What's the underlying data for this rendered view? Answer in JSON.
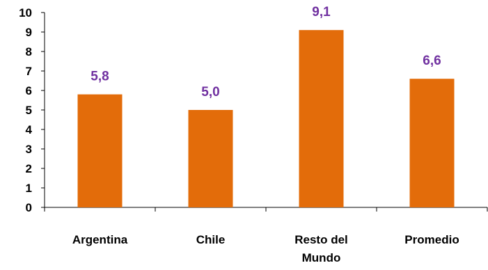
{
  "chart_data": {
    "type": "bar",
    "categories": [
      "Argentina",
      "Chile",
      "Resto del Mundo",
      "Promedio"
    ],
    "category_lines": [
      [
        "Argentina"
      ],
      [
        "Chile"
      ],
      [
        "Resto del",
        "Mundo"
      ],
      [
        "Promedio"
      ]
    ],
    "values": [
      5.8,
      5.0,
      9.1,
      6.6
    ],
    "data_labels": [
      "5,8",
      "5,0",
      "9,1",
      "6,6"
    ],
    "y_ticks": [
      0,
      1,
      2,
      3,
      4,
      5,
      6,
      7,
      8,
      9,
      10
    ],
    "ylim": [
      0,
      10
    ],
    "title": "",
    "xlabel": "",
    "ylabel": "",
    "grid": false,
    "legend": "none",
    "colors": {
      "bar": "#E36C0A",
      "data_label": "#7030A0",
      "axis": "#000000"
    }
  }
}
